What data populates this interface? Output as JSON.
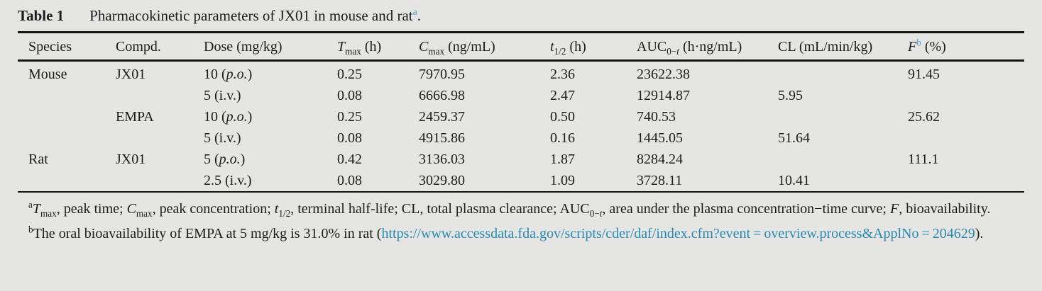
{
  "colors": {
    "background": "#e5e5e4",
    "text": "#1c1c1c",
    "rule": "#141414",
    "superscript_accent": "#49a6c8",
    "link": "#2b89ae"
  },
  "title": {
    "label": "Table 1",
    "caption": [
      {
        "t": "Pharmacokinetic parameters of JX01 in mouse and rat"
      },
      {
        "t": "a",
        "s": "sup accent"
      },
      {
        "t": "."
      }
    ]
  },
  "table": {
    "columns": [
      [
        {
          "t": "Species"
        }
      ],
      [
        {
          "t": "Compd."
        }
      ],
      [
        {
          "t": "Dose (mg/kg)"
        }
      ],
      [
        {
          "t": "T",
          "s": "i"
        },
        {
          "t": "max",
          "s": "sub"
        },
        {
          "t": " (h)"
        }
      ],
      [
        {
          "t": "C",
          "s": "i"
        },
        {
          "t": "max",
          "s": "sub"
        },
        {
          "t": " (ng/mL)"
        }
      ],
      [
        {
          "t": "t",
          "s": "i"
        },
        {
          "t": "1/2",
          "s": "sub"
        },
        {
          "t": " (h)"
        }
      ],
      [
        {
          "t": "AUC"
        },
        {
          "t": "0−",
          "s": "sub"
        },
        {
          "t": "t",
          "s": "sub i"
        },
        {
          "t": " (h·ng/mL)"
        }
      ],
      [
        {
          "t": "CL (mL/min/kg)"
        }
      ],
      [
        {
          "t": "F",
          "s": "i"
        },
        {
          "t": "b",
          "s": "sup accent"
        },
        {
          "t": " (%)"
        }
      ]
    ],
    "rows": [
      {
        "species": "Mouse",
        "compound": "JX01",
        "dose": [
          {
            "t": "10 ("
          },
          {
            "t": "p.o.",
            "s": "i"
          },
          {
            "t": ")"
          }
        ],
        "tmax": "0.25",
        "cmax": "7970.95",
        "t12": "2.36",
        "auc": "23622.38",
        "cl": "",
        "f": "91.45"
      },
      {
        "species": "",
        "compound": "",
        "dose": [
          {
            "t": "5 (i.v.)"
          }
        ],
        "tmax": "0.08",
        "cmax": "6666.98",
        "t12": "2.47",
        "auc": "12914.87",
        "cl": "5.95",
        "f": ""
      },
      {
        "species": "",
        "compound": "EMPA",
        "dose": [
          {
            "t": "10 ("
          },
          {
            "t": "p.o.",
            "s": "i"
          },
          {
            "t": ")"
          }
        ],
        "tmax": "0.25",
        "cmax": "2459.37",
        "t12": "0.50",
        "auc": "740.53",
        "cl": "",
        "f": "25.62"
      },
      {
        "species": "",
        "compound": "",
        "dose": [
          {
            "t": "5 (i.v.)"
          }
        ],
        "tmax": "0.08",
        "cmax": "4915.86",
        "t12": "0.16",
        "auc": "1445.05",
        "cl": "51.64",
        "f": ""
      },
      {
        "species": "Rat",
        "compound": "JX01",
        "dose": [
          {
            "t": "5 ("
          },
          {
            "t": "p.o.",
            "s": "i"
          },
          {
            "t": ")"
          }
        ],
        "tmax": "0.42",
        "cmax": "3136.03",
        "t12": "1.87",
        "auc": "8284.24",
        "cl": "",
        "f": "111.1"
      },
      {
        "species": "",
        "compound": "",
        "dose": [
          {
            "t": "2.5 (i.v.)"
          }
        ],
        "tmax": "0.08",
        "cmax": "3029.80",
        "t12": "1.09",
        "auc": "3728.11",
        "cl": "10.41",
        "f": ""
      }
    ]
  },
  "footnotes": {
    "a": [
      {
        "t": "a",
        "s": "sup"
      },
      {
        "t": "T",
        "s": "i"
      },
      {
        "t": "max",
        "s": "sub"
      },
      {
        "t": ", peak time; "
      },
      {
        "t": "C",
        "s": "i"
      },
      {
        "t": "max",
        "s": "sub"
      },
      {
        "t": ", peak concentration; "
      },
      {
        "t": "t",
        "s": "i"
      },
      {
        "t": "1/2",
        "s": "sub"
      },
      {
        "t": ", terminal half-life; CL, total plasma clearance; AUC"
      },
      {
        "t": "0−",
        "s": "sub"
      },
      {
        "t": "t",
        "s": "sub i"
      },
      {
        "t": ", area under the plasma concentration−time curve; "
      },
      {
        "t": "F",
        "s": "i"
      },
      {
        "t": ", bioavailability."
      }
    ],
    "b": [
      {
        "t": "b",
        "s": "sup"
      },
      {
        "t": "The oral bioavailability of EMPA at 5 mg/kg is 31.0% in rat ("
      },
      {
        "t": "https://www.accessdata.fda.gov/scripts/cder/daf/index.cfm?event = overview.",
        "s": "link",
        "wbr": true
      },
      {
        "t": "process&ApplNo = 204629",
        "s": "link"
      },
      {
        "t": ")."
      }
    ]
  }
}
